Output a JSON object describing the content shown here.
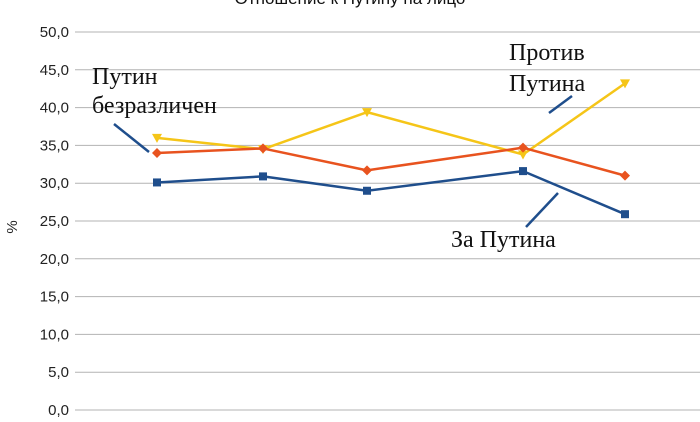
{
  "chart_data": {
    "type": "line",
    "title": "Отношение к Путину на лицо",
    "xlabel": "",
    "ylabel": "%",
    "ylim": [
      0,
      50
    ],
    "yticks": [
      "0,0",
      "5,0",
      "10,0",
      "15,0",
      "20,0",
      "25,0",
      "30,0",
      "35,0",
      "40,0",
      "45,0",
      "50,0"
    ],
    "grid": true,
    "legend": "none",
    "series": [
      {
        "annotation": [
          "Против",
          "Путина"
        ],
        "color": "#f5c518",
        "marker": "triangle-down",
        "values": [
          36.0,
          34.5,
          39.4,
          33.8,
          43.2
        ]
      },
      {
        "annotation": [
          "Путин",
          "безразличен"
        ],
        "color": "#e8531f",
        "marker": "diamond",
        "values": [
          34.0,
          34.6,
          31.7,
          34.7,
          31.0
        ]
      },
      {
        "annotation": [
          "За Путина"
        ],
        "color": "#1f4e8c",
        "marker": "square",
        "values": [
          30.1,
          30.9,
          29.0,
          31.6,
          25.9
        ]
      }
    ]
  }
}
